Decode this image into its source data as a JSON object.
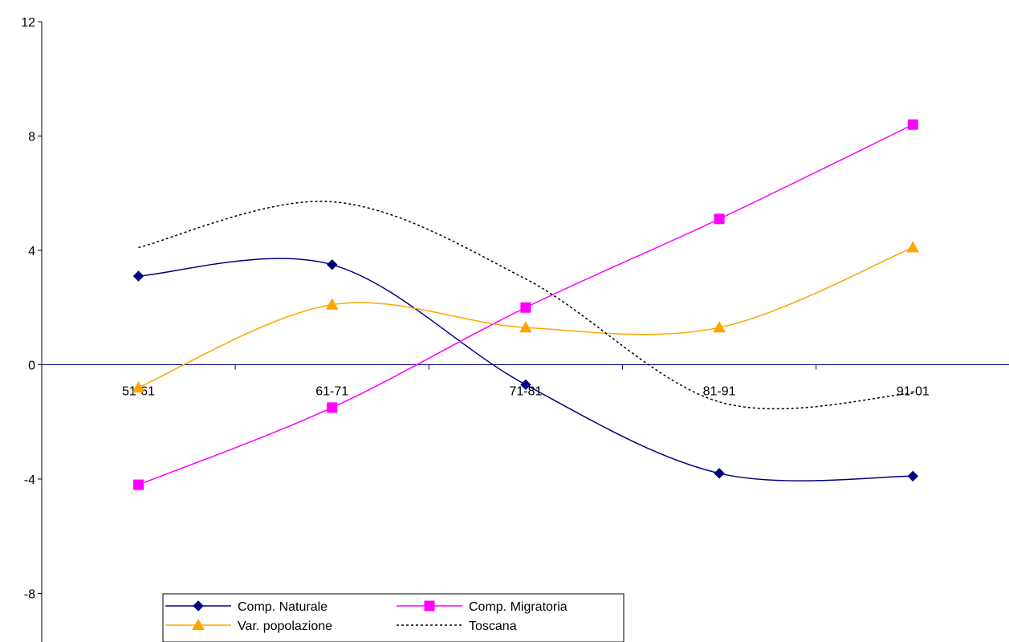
{
  "chart_data": {
    "type": "line",
    "categories": [
      "51-61",
      "61-71",
      "71-81",
      "81-91",
      "91-01"
    ],
    "series": [
      {
        "name": "Comp. Naturale",
        "values": [
          3.1,
          3.5,
          -0.7,
          -3.8,
          -3.9
        ],
        "color": "#000080",
        "marker": "diamond",
        "dashed": false
      },
      {
        "name": "Comp. Migratoria",
        "values": [
          -4.2,
          -1.5,
          2.0,
          5.1,
          8.4
        ],
        "color": "#ff00ff",
        "marker": "square",
        "dashed": false
      },
      {
        "name": "Var. popolazione",
        "values": [
          -0.8,
          2.1,
          1.3,
          1.3,
          4.1
        ],
        "color": "#ffa500",
        "marker": "triangle",
        "dashed": false
      },
      {
        "name": "Toscana",
        "values": [
          4.1,
          5.7,
          3.0,
          -1.3,
          -1.0
        ],
        "color": "#000000",
        "marker": "none",
        "dashed": true
      }
    ],
    "yticks": [
      12,
      8,
      4,
      0,
      -4,
      -8
    ],
    "ylim": [
      -9.7,
      12
    ],
    "grid": false,
    "legend_position": "bottom-left"
  }
}
